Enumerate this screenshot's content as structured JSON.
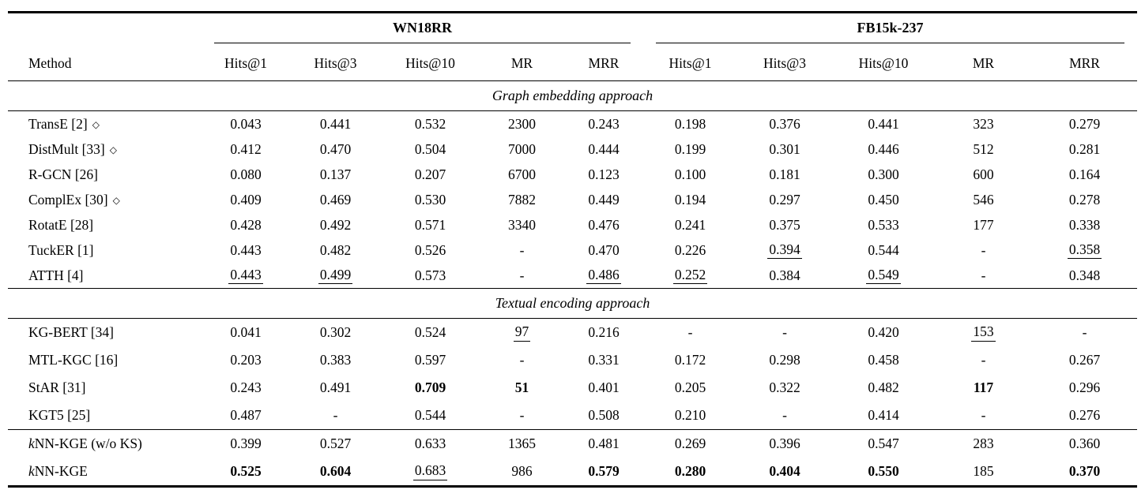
{
  "table": {
    "method_header": "Method",
    "groups": [
      {
        "label": "WN18RR"
      },
      {
        "label": "FB15k-237"
      }
    ],
    "metric_columns": [
      "Hits@1",
      "Hits@3",
      "Hits@10",
      "MR",
      "MRR"
    ],
    "marker_glyph": "◇",
    "sections": [
      {
        "title": "Graph embedding approach",
        "rows": [
          {
            "method": {
              "label": "TransE [2]",
              "marker": true
            },
            "cells": [
              "0.043",
              "0.441",
              "0.532",
              "2300",
              "0.243",
              "0.198",
              "0.376",
              "0.441",
              "323",
              "0.279"
            ]
          },
          {
            "method": {
              "label": "DistMult [33]",
              "marker": true
            },
            "cells": [
              "0.412",
              "0.470",
              "0.504",
              "7000",
              "0.444",
              "0.199",
              "0.301",
              "0.446",
              "512",
              "0.281"
            ]
          },
          {
            "method": {
              "label": "R-GCN [26]"
            },
            "cells": [
              "0.080",
              "0.137",
              "0.207",
              "6700",
              "0.123",
              "0.100",
              "0.181",
              "0.300",
              "600",
              "0.164"
            ]
          },
          {
            "method": {
              "label": "ComplEx [30]",
              "marker": true
            },
            "cells": [
              "0.409",
              "0.469",
              "0.530",
              "7882",
              "0.449",
              "0.194",
              "0.297",
              "0.450",
              "546",
              "0.278"
            ]
          },
          {
            "method": {
              "label": "RotatE [28]"
            },
            "cells": [
              "0.428",
              "0.492",
              "0.571",
              "3340",
              "0.476",
              "0.241",
              "0.375",
              "0.533",
              "177",
              "0.338"
            ]
          },
          {
            "method": {
              "label": "TuckER [1]"
            },
            "cells": [
              "0.443",
              "0.482",
              "0.526",
              "-",
              "0.470",
              "0.226",
              [
                "0.394",
                "u"
              ],
              "0.544",
              "-",
              [
                "0.358",
                "u"
              ]
            ]
          },
          {
            "method": {
              "label": "ATTH [4]"
            },
            "cells": [
              [
                "0.443",
                "u"
              ],
              [
                "0.499",
                "u"
              ],
              "0.573",
              "-",
              [
                "0.486",
                "u"
              ],
              [
                "0.252",
                "u"
              ],
              "0.384",
              [
                "0.549",
                "u"
              ],
              "-",
              "0.348"
            ]
          }
        ]
      },
      {
        "title": "Textual encoding approach",
        "rows": [
          {
            "method": {
              "label": "KG-BERT [34]"
            },
            "cells": [
              "0.041",
              "0.302",
              "0.524",
              [
                "97",
                "u"
              ],
              "0.216",
              "-",
              "-",
              "0.420",
              [
                "153",
                "u"
              ],
              "-"
            ]
          },
          {
            "method": {
              "label": "MTL-KGC [16]"
            },
            "cells": [
              "0.203",
              "0.383",
              "0.597",
              "-",
              "0.331",
              "0.172",
              "0.298",
              "0.458",
              "-",
              "0.267"
            ]
          },
          {
            "method": {
              "label": "StAR [31]"
            },
            "cells": [
              "0.243",
              "0.491",
              [
                "0.709",
                "b"
              ],
              [
                "51",
                "b"
              ],
              "0.401",
              "0.205",
              "0.322",
              "0.482",
              [
                "117",
                "b"
              ],
              "0.296"
            ]
          },
          {
            "method": {
              "label": "KGT5 [25]"
            },
            "cells": [
              "0.487",
              "-",
              "0.544",
              "-",
              "0.508",
              "0.210",
              "-",
              "0.414",
              "-",
              "0.276"
            ]
          }
        ]
      },
      {
        "title": null,
        "rows": [
          {
            "method": {
              "label": "kNN-KGE (w/o KS)",
              "k_italic": true
            },
            "cells": [
              "0.399",
              "0.527",
              "0.633",
              "1365",
              "0.481",
              "0.269",
              "0.396",
              "0.547",
              "283",
              "0.360"
            ]
          },
          {
            "method": {
              "label": "kNN-KGE",
              "k_italic": true
            },
            "cells": [
              [
                "0.525",
                "b"
              ],
              [
                "0.604",
                "b"
              ],
              [
                "0.683",
                "u"
              ],
              "986",
              [
                "0.579",
                "b"
              ],
              [
                "0.280",
                "b"
              ],
              [
                "0.404",
                "b"
              ],
              [
                "0.550",
                "b"
              ],
              "185",
              [
                "0.370",
                "b"
              ]
            ]
          }
        ]
      }
    ]
  }
}
